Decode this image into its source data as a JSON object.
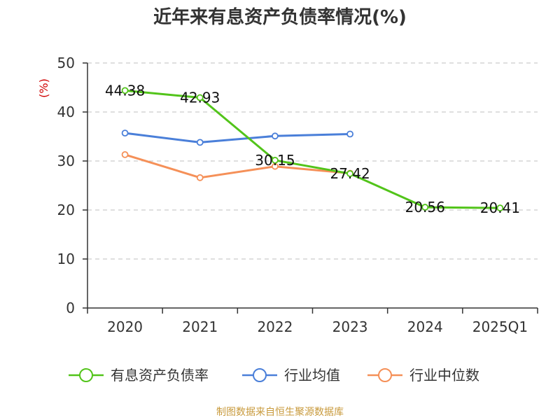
{
  "chart_data": {
    "type": "line",
    "title": "近年来有息资产负债率情况(%)",
    "ylabel": "(%)",
    "xlabel": "",
    "categories": [
      "2020",
      "2021",
      "2022",
      "2023",
      "2024",
      "2025Q1"
    ],
    "ylim": [
      0,
      50
    ],
    "yticks": [
      0,
      10,
      20,
      30,
      40,
      50
    ],
    "grid": true,
    "legend_position": "bottom",
    "series": [
      {
        "name": "有息资产负债率",
        "color": "#52c41a",
        "values": [
          44.38,
          42.93,
          30.15,
          27.42,
          20.56,
          20.41
        ],
        "labels": [
          "44.38",
          "42.93",
          "30.15",
          "27.42",
          "20.56",
          "20.41"
        ]
      },
      {
        "name": "行业均值",
        "color": "#4a7fd9",
        "values": [
          35.7,
          33.8,
          35.1,
          35.5,
          null,
          null
        ]
      },
      {
        "name": "行业中位数",
        "color": "#f59058",
        "values": [
          31.3,
          26.6,
          28.9,
          27.5,
          null,
          null
        ]
      }
    ],
    "source": "制图数据来自恒生聚源数据库"
  }
}
